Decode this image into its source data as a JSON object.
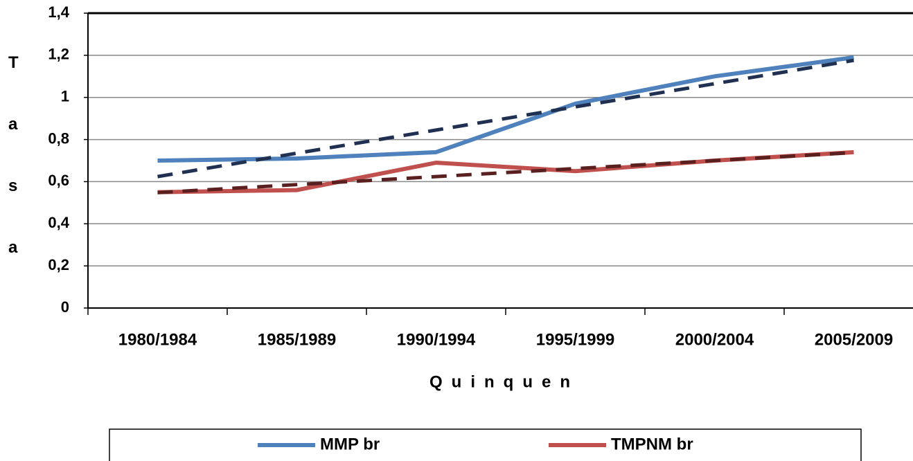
{
  "chart_data": {
    "type": "line",
    "y_label": "Tasa",
    "x_label": "Quinquen",
    "categories": [
      "1980/1984",
      "1985/1989",
      "1990/1994",
      "1995/1999",
      "2000/2004",
      "2005/2009"
    ],
    "series": [
      {
        "name": "MMP br",
        "color": "#4f81bd",
        "values": [
          0.7,
          0.71,
          0.74,
          0.97,
          1.1,
          1.19
        ]
      },
      {
        "name": "TMPNM br",
        "color": "#c0504d",
        "values": [
          0.55,
          0.56,
          0.69,
          0.65,
          0.7,
          0.74
        ]
      },
      {
        "color": "#1f3050",
        "dashed": true,
        "values": [
          0.624,
          0.735,
          0.845,
          0.955,
          1.065,
          1.176
        ]
      },
      {
        "color": "#5a2020",
        "dashed": true,
        "values": [
          0.548,
          0.586,
          0.624,
          0.662,
          0.7,
          0.738
        ]
      }
    ],
    "ylim": [
      0,
      1.4
    ],
    "yticks": [
      0,
      {
        "value": 0.2,
        "label": "0,2"
      },
      {
        "value": 0.4,
        "label": "0,4"
      },
      {
        "value": 0.6,
        "label": "0,6"
      },
      {
        "value": 0.8,
        "label": "0,8"
      },
      1,
      {
        "value": 1.2,
        "label": "1,2"
      },
      {
        "value": 1.4,
        "label": "1,4"
      }
    ],
    "grid": true,
    "legend": "bottom"
  }
}
